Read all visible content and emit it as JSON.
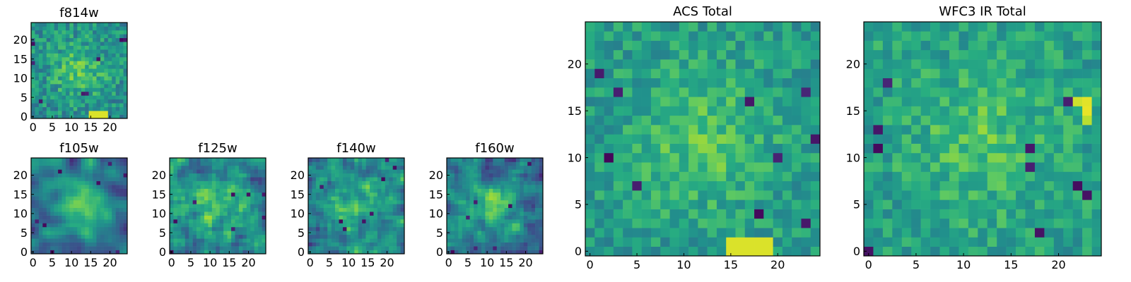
{
  "colors": {
    "colormap": "viridis",
    "axis": "#000000",
    "background": "#ffffff"
  },
  "chart_data": [
    {
      "type": "heatmap",
      "title": "f814w",
      "x_ticks": [
        0,
        5,
        10,
        15,
        20
      ],
      "y_ticks": [
        0,
        5,
        10,
        15,
        20
      ],
      "xlim": [
        -0.5,
        24.5
      ],
      "ylim": [
        -0.5,
        24.5
      ],
      "grid_size": [
        25,
        25
      ],
      "pattern": "noisy image with a faint central source; bright pixels near bottom center"
    },
    {
      "type": "heatmap",
      "title": "f105w",
      "x_ticks": [
        0,
        5,
        10,
        15,
        20
      ],
      "y_ticks": [
        0,
        5,
        10,
        15,
        20
      ],
      "xlim": [
        -0.5,
        24.5
      ],
      "ylim": [
        -0.5,
        24.5
      ],
      "grid_size": [
        25,
        25
      ],
      "pattern": "smooth bright central source"
    },
    {
      "type": "heatmap",
      "title": "f125w",
      "x_ticks": [
        0,
        5,
        10,
        15,
        20
      ],
      "y_ticks": [
        0,
        5,
        10,
        15,
        20
      ],
      "xlim": [
        -0.5,
        24.5
      ],
      "ylim": [
        -0.5,
        24.5
      ],
      "grid_size": [
        25,
        25
      ],
      "pattern": "mottled noise with a faint central source"
    },
    {
      "type": "heatmap",
      "title": "f140w",
      "x_ticks": [
        0,
        5,
        10,
        15,
        20
      ],
      "y_ticks": [
        0,
        5,
        10,
        15,
        20
      ],
      "xlim": [
        -0.5,
        24.5
      ],
      "ylim": [
        -0.5,
        24.5
      ],
      "grid_size": [
        25,
        25
      ],
      "pattern": "mottled noise with bright patches"
    },
    {
      "type": "heatmap",
      "title": "f160w",
      "x_ticks": [
        0,
        5,
        10,
        15,
        20
      ],
      "y_ticks": [
        0,
        5,
        10,
        15,
        20
      ],
      "xlim": [
        -0.5,
        24.5
      ],
      "ylim": [
        -0.5,
        24.5
      ],
      "grid_size": [
        25,
        25
      ],
      "pattern": "noise with a compact central source and dark patches"
    },
    {
      "type": "heatmap",
      "title": "ACS Total",
      "x_ticks": [
        0,
        5,
        10,
        15,
        20
      ],
      "y_ticks": [
        0,
        5,
        10,
        15,
        20
      ],
      "xlim": [
        -0.5,
        24.5
      ],
      "ylim": [
        -0.5,
        24.5
      ],
      "grid_size": [
        25,
        25
      ],
      "pattern": "coarse pixels, central source, bright block at bottom center"
    },
    {
      "type": "heatmap",
      "title": "WFC3 IR Total",
      "x_ticks": [
        0,
        5,
        10,
        15,
        20
      ],
      "y_ticks": [
        0,
        5,
        10,
        15,
        20
      ],
      "xlim": [
        -0.5,
        24.5
      ],
      "ylim": [
        -0.5,
        24.5
      ],
      "grid_size": [
        25,
        25
      ],
      "pattern": "coarse pixels, faint central source, bright pixels at right"
    }
  ]
}
